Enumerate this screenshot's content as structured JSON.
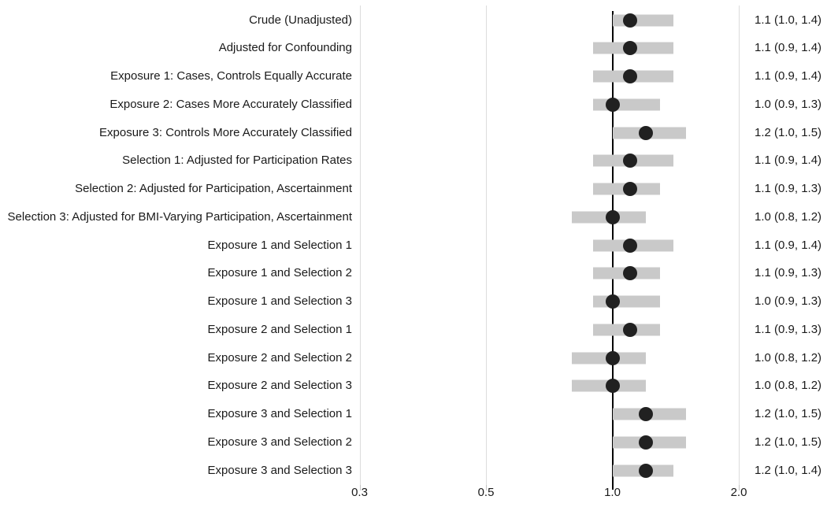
{
  "chart_data": {
    "type": "scatter",
    "subtype": "forest_plot",
    "title": "",
    "xlabel": "",
    "ylabel": "",
    "x_scale": "log2",
    "x_tick_labels": [
      "0.3",
      "0.5",
      "1.0",
      "2.0"
    ],
    "reference_line_x": 1.0,
    "grid": "vertical-only",
    "legend": "none",
    "rows": [
      {
        "label": "Crude (Unadjusted)",
        "estimate": 1.1,
        "ci_low": 1.0,
        "ci_high": 1.4,
        "value_text": "1.1 (1.0, 1.4)"
      },
      {
        "label": "Adjusted for Confounding",
        "estimate": 1.1,
        "ci_low": 0.9,
        "ci_high": 1.4,
        "value_text": "1.1 (0.9, 1.4)"
      },
      {
        "label": "Exposure 1: Cases, Controls Equally Accurate",
        "estimate": 1.1,
        "ci_low": 0.9,
        "ci_high": 1.4,
        "value_text": "1.1 (0.9, 1.4)"
      },
      {
        "label": "Exposure 2: Cases More Accurately Classified",
        "estimate": 1.0,
        "ci_low": 0.9,
        "ci_high": 1.3,
        "value_text": "1.0 (0.9, 1.3)"
      },
      {
        "label": "Exposure 3: Controls More Accurately Classified",
        "estimate": 1.2,
        "ci_low": 1.0,
        "ci_high": 1.5,
        "value_text": "1.2 (1.0, 1.5)"
      },
      {
        "label": "Selection 1: Adjusted for Participation Rates",
        "estimate": 1.1,
        "ci_low": 0.9,
        "ci_high": 1.4,
        "value_text": "1.1 (0.9, 1.4)"
      },
      {
        "label": "Selection 2: Adjusted for Participation, Ascertainment",
        "estimate": 1.1,
        "ci_low": 0.9,
        "ci_high": 1.3,
        "value_text": "1.1 (0.9, 1.3)"
      },
      {
        "label": "Selection 3: Adjusted for BMI-Varying Participation, Ascertainment",
        "estimate": 1.0,
        "ci_low": 0.8,
        "ci_high": 1.2,
        "value_text": "1.0 (0.8, 1.2)"
      },
      {
        "label": "Exposure 1 and Selection 1",
        "estimate": 1.1,
        "ci_low": 0.9,
        "ci_high": 1.4,
        "value_text": "1.1 (0.9, 1.4)"
      },
      {
        "label": "Exposure 1 and Selection 2",
        "estimate": 1.1,
        "ci_low": 0.9,
        "ci_high": 1.3,
        "value_text": "1.1 (0.9, 1.3)"
      },
      {
        "label": "Exposure 1 and Selection 3",
        "estimate": 1.0,
        "ci_low": 0.9,
        "ci_high": 1.3,
        "value_text": "1.0 (0.9, 1.3)"
      },
      {
        "label": "Exposure 2 and Selection 1",
        "estimate": 1.1,
        "ci_low": 0.9,
        "ci_high": 1.3,
        "value_text": "1.1 (0.9, 1.3)"
      },
      {
        "label": "Exposure 2 and Selection 2",
        "estimate": 1.0,
        "ci_low": 0.8,
        "ci_high": 1.2,
        "value_text": "1.0 (0.8, 1.2)"
      },
      {
        "label": "Exposure 2 and Selection 3",
        "estimate": 1.0,
        "ci_low": 0.8,
        "ci_high": 1.2,
        "value_text": "1.0 (0.8, 1.2)"
      },
      {
        "label": "Exposure 3 and Selection 1",
        "estimate": 1.2,
        "ci_low": 1.0,
        "ci_high": 1.5,
        "value_text": "1.2 (1.0, 1.5)"
      },
      {
        "label": "Exposure 3 and Selection 2",
        "estimate": 1.2,
        "ci_low": 1.0,
        "ci_high": 1.5,
        "value_text": "1.2 (1.0, 1.5)"
      },
      {
        "label": "Exposure 3 and Selection 3",
        "estimate": 1.2,
        "ci_low": 1.0,
        "ci_high": 1.4,
        "value_text": "1.2 (1.0, 1.4)"
      }
    ],
    "colors": {
      "ci_bar": "#c9c9c9",
      "point": "#212121",
      "reference_line": "#000000",
      "gridline": "#dcdcdc",
      "text": "#1a1a1a"
    }
  }
}
